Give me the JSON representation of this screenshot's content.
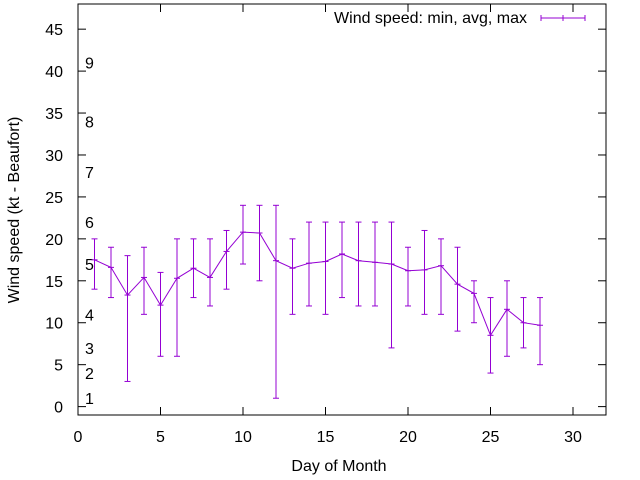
{
  "chart_data": {
    "type": "line",
    "xlabel": "Day of Month",
    "ylabel": "Wind speed (kt - Beaufort)",
    "xlim": [
      0,
      32
    ],
    "ylim": [
      -1,
      48
    ],
    "xticks": [
      0,
      5,
      10,
      15,
      20,
      25,
      30
    ],
    "yticks": [
      0,
      5,
      10,
      15,
      20,
      25,
      30,
      35,
      40,
      45
    ],
    "grid": false,
    "legend_position": "top-right",
    "series_color": "#9400d3",
    "series": [
      {
        "name": "Wind speed: min, avg, max",
        "x": [
          1,
          2,
          3,
          4,
          5,
          6,
          7,
          8,
          9,
          10,
          11,
          12,
          13,
          14,
          15,
          16,
          17,
          18,
          19,
          20,
          21,
          22,
          23,
          24,
          25,
          26,
          27,
          28
        ],
        "avg": [
          17.5,
          16.6,
          13.3,
          15.4,
          12.1,
          15.3,
          16.5,
          15.4,
          18.5,
          20.8,
          20.7,
          17.4,
          16.5,
          17.1,
          17.3,
          18.2,
          17.4,
          17.2,
          17.0,
          16.2,
          16.3,
          16.8,
          14.6,
          13.5,
          8.5,
          11.6,
          10.0,
          9.7
        ],
        "min": [
          14,
          13,
          3,
          11,
          6,
          6,
          13,
          12,
          14,
          17,
          15,
          1,
          11,
          12,
          11,
          13,
          12,
          12,
          7,
          12,
          11,
          11,
          9,
          10,
          4,
          6,
          7,
          5
        ],
        "max": [
          20,
          19,
          18,
          19,
          16,
          20,
          20,
          20,
          21,
          24,
          24,
          24,
          20,
          22,
          22,
          22,
          22,
          22,
          22,
          19,
          21,
          20,
          19,
          15,
          13,
          15,
          13,
          13
        ]
      }
    ],
    "beaufort_labels": [
      {
        "label": "1",
        "value": 1
      },
      {
        "label": "2",
        "value": 4
      },
      {
        "label": "3",
        "value": 7
      },
      {
        "label": "4",
        "value": 11
      },
      {
        "label": "5",
        "value": 17
      },
      {
        "label": "6",
        "value": 22
      },
      {
        "label": "7",
        "value": 28
      },
      {
        "label": "8",
        "value": 34
      },
      {
        "label": "9",
        "value": 41
      }
    ]
  }
}
